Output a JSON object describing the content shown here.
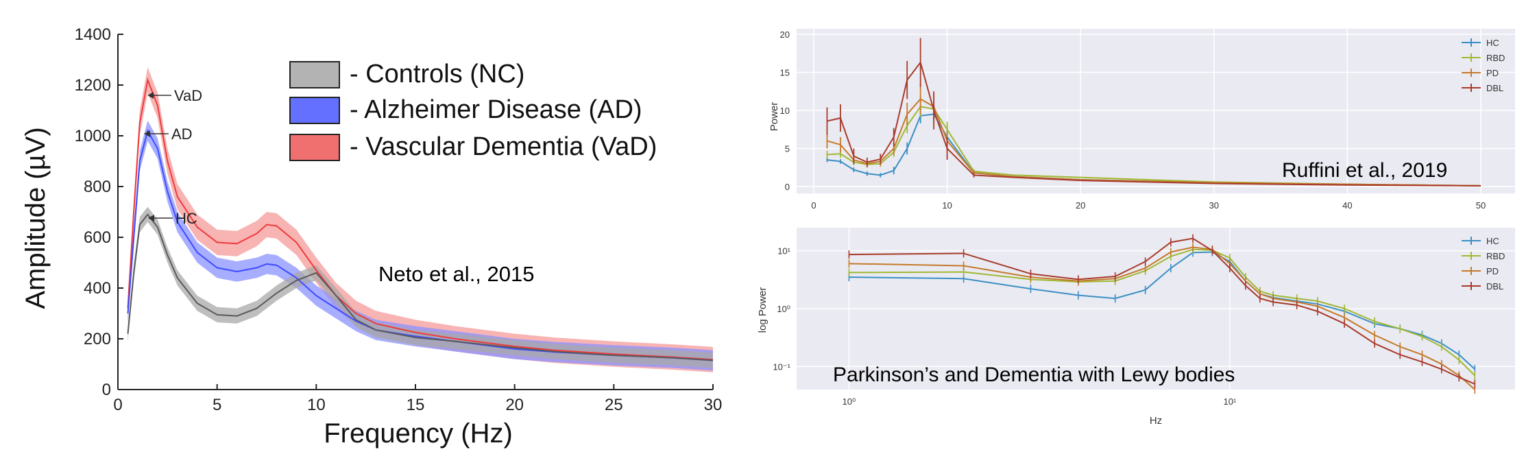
{
  "colors": {
    "hc_left": "#5a5a5a",
    "ad_left": "#3d4bff",
    "vad_left": "#ee3b3b",
    "hc": "#3a8fc4",
    "rbd": "#9fb832",
    "pd": "#c47a2a",
    "dbl": "#a83a2a",
    "panel_bg": "#eaeaf2"
  },
  "annotations": {
    "neto": "Neto et al., 2015",
    "ruffini": "Ruffini et al., 2019",
    "parkinson": "Parkinson’s and Dementia with Lewy bodies"
  },
  "chart_data": [
    {
      "type": "area",
      "title": "",
      "xlabel": "Frequency (Hz)",
      "ylabel": "Amplitude (µV)",
      "xlim": [
        0,
        30
      ],
      "ylim": [
        0,
        1400
      ],
      "xticks": [
        0,
        5,
        10,
        15,
        20,
        25,
        30
      ],
      "yticks": [
        0,
        200,
        400,
        600,
        800,
        1000,
        1200,
        1400
      ],
      "legend": {
        "placement": "top-right",
        "entries": [
          "- Controls (NC)",
          "- Alzheimer Disease (AD)",
          "- Vascular Dementia (VaD)"
        ]
      },
      "curve_labels": [
        "VaD",
        "AD",
        "HC"
      ],
      "series": [
        {
          "name": "- Controls (NC)",
          "band": 30,
          "x": [
            0.5,
            0.8,
            1.1,
            1.5,
            2,
            2.5,
            3,
            4,
            5,
            6,
            7,
            8,
            9,
            10,
            11,
            12,
            13,
            15,
            17,
            20,
            22,
            25,
            28,
            30
          ],
          "y": [
            220,
            460,
            650,
            690,
            640,
            530,
            440,
            340,
            295,
            290,
            320,
            380,
            430,
            460,
            370,
            275,
            235,
            205,
            190,
            165,
            150,
            135,
            125,
            115
          ]
        },
        {
          "name": "- Alzheimer Disease (AD)",
          "band": 40,
          "x": [
            0.5,
            0.8,
            1.1,
            1.5,
            2,
            2.5,
            3,
            4,
            5,
            6,
            7,
            7.5,
            8,
            9,
            10,
            11,
            12,
            13,
            15,
            17,
            20,
            22,
            25,
            28,
            30
          ],
          "y": [
            300,
            600,
            900,
            1020,
            950,
            780,
            660,
            540,
            480,
            465,
            480,
            495,
            490,
            440,
            370,
            320,
            270,
            235,
            210,
            190,
            160,
            148,
            135,
            125,
            115
          ]
        },
        {
          "name": "- Vascular Dementia (VaD)",
          "band": 50,
          "x": [
            0.5,
            0.8,
            1.1,
            1.5,
            2,
            2.5,
            3,
            4,
            5,
            6,
            7,
            7.5,
            8,
            9,
            10,
            11,
            12,
            13,
            15,
            17,
            20,
            22,
            25,
            28,
            30
          ],
          "y": [
            320,
            700,
            1050,
            1220,
            1120,
            900,
            760,
            640,
            580,
            575,
            615,
            650,
            645,
            580,
            470,
            370,
            300,
            260,
            225,
            200,
            170,
            155,
            140,
            128,
            118
          ]
        }
      ]
    },
    {
      "type": "line",
      "xlim": [
        0,
        50
      ],
      "ylim": [
        0,
        20
      ],
      "xticks": [
        0,
        10,
        20,
        30,
        40,
        50
      ],
      "yticks": [
        0,
        5,
        10,
        15,
        20
      ],
      "ylabel": "Power",
      "legend": {
        "placement": "top-right",
        "entries": [
          "HC",
          "RBD",
          "PD",
          "DBL"
        ]
      },
      "x": [
        1,
        2,
        3,
        4,
        5,
        6,
        7,
        8,
        9,
        10,
        12,
        15,
        20,
        30,
        40,
        50
      ],
      "series": [
        {
          "name": "HC",
          "values": [
            3.5,
            3.3,
            2.2,
            1.7,
            1.5,
            2.1,
            5.0,
            9.3,
            9.5,
            6.5,
            1.8,
            1.3,
            0.9,
            0.5,
            0.3,
            0.1
          ],
          "err": [
            0.3,
            0.3,
            0.3,
            0.3,
            0.3,
            0.5,
            0.8,
            1.0,
            1.0,
            0.8,
            0.3,
            0.2,
            0.1,
            0.1,
            0.05,
            0.05
          ]
        },
        {
          "name": "RBD",
          "values": [
            4.2,
            4.3,
            3.2,
            2.9,
            3.0,
            4.5,
            8.0,
            10.5,
            10.2,
            7.5,
            2.0,
            1.5,
            1.2,
            0.6,
            0.3,
            0.1
          ],
          "err": [
            0.5,
            0.5,
            0.4,
            0.4,
            0.4,
            0.6,
            1.0,
            1.3,
            1.2,
            1.0,
            0.3,
            0.2,
            0.1,
            0.1,
            0.05,
            0.05
          ]
        },
        {
          "name": "PD",
          "values": [
            6.0,
            5.5,
            3.5,
            3.0,
            3.3,
            5.0,
            9.5,
            11.5,
            10.5,
            6.0,
            1.8,
            1.3,
            0.9,
            0.5,
            0.3,
            0.1
          ],
          "err": [
            1.0,
            1.0,
            0.6,
            0.5,
            0.5,
            0.8,
            1.5,
            2.0,
            1.8,
            1.2,
            0.3,
            0.2,
            0.1,
            0.1,
            0.05,
            0.05
          ]
        },
        {
          "name": "DBL",
          "values": [
            8.6,
            9.0,
            4.0,
            3.2,
            3.6,
            6.5,
            14.0,
            16.3,
            10.0,
            5.0,
            1.5,
            1.2,
            0.8,
            0.4,
            0.2,
            0.1
          ],
          "err": [
            1.8,
            1.8,
            1.0,
            0.6,
            0.7,
            1.2,
            2.5,
            3.2,
            2.5,
            1.5,
            0.3,
            0.2,
            0.1,
            0.1,
            0.05,
            0.05
          ]
        }
      ]
    },
    {
      "type": "line",
      "xscale": "log",
      "yscale": "log",
      "xlabel": "Hz",
      "ylabel": "log Power",
      "xlim": [
        0.9,
        46
      ],
      "ylim": [
        0.04,
        25
      ],
      "xticks": [
        1,
        10
      ],
      "yticks": [
        0.1,
        1,
        10
      ],
      "legend": {
        "placement": "top-right",
        "entries": [
          "HC",
          "RBD",
          "PD",
          "DBL"
        ]
      },
      "x": [
        1,
        2,
        3,
        4,
        5,
        6,
        7,
        8,
        9,
        10,
        11,
        12,
        13,
        15,
        17,
        20,
        24,
        28,
        32,
        36,
        40,
        44
      ],
      "series": [
        {
          "name": "HC",
          "values": [
            3.5,
            3.3,
            2.2,
            1.7,
            1.5,
            2.1,
            5.0,
            9.3,
            9.5,
            6.5,
            3.0,
            1.8,
            1.55,
            1.35,
            1.2,
            0.9,
            0.55,
            0.45,
            0.35,
            0.25,
            0.16,
            0.09
          ]
        },
        {
          "name": "RBD",
          "values": [
            4.2,
            4.3,
            3.2,
            2.9,
            3.0,
            4.5,
            8.0,
            10.5,
            10.2,
            7.5,
            3.5,
            2.0,
            1.7,
            1.5,
            1.35,
            1.0,
            0.6,
            0.45,
            0.33,
            0.22,
            0.13,
            0.07
          ]
        },
        {
          "name": "PD",
          "values": [
            6.0,
            5.5,
            3.5,
            3.0,
            3.3,
            5.0,
            9.5,
            11.5,
            10.5,
            6.0,
            3.0,
            1.8,
            1.5,
            1.3,
            1.1,
            0.7,
            0.35,
            0.22,
            0.16,
            0.11,
            0.07,
            0.04
          ]
        },
        {
          "name": "DBL",
          "values": [
            8.6,
            9.0,
            4.0,
            3.2,
            3.6,
            6.5,
            14.0,
            16.3,
            10.0,
            5.0,
            2.5,
            1.5,
            1.3,
            1.15,
            0.9,
            0.55,
            0.25,
            0.16,
            0.12,
            0.09,
            0.065,
            0.05
          ]
        }
      ]
    }
  ]
}
